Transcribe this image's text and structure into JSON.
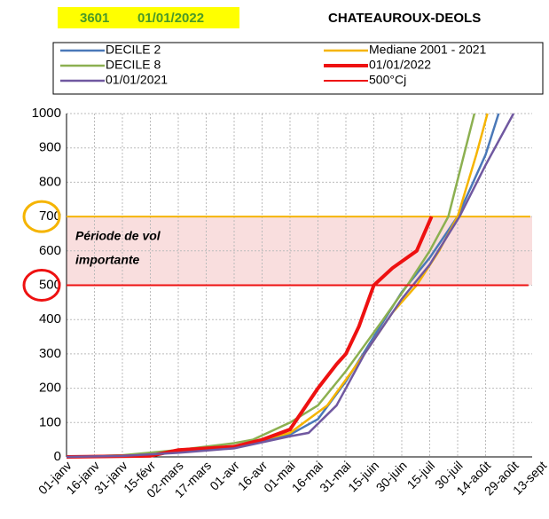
{
  "header": {
    "code": "3601",
    "date": "01/01/2022",
    "station": "CHATEAUROUX-DEOLS"
  },
  "chart_data": {
    "type": "line",
    "annotation": "Période de vol",
    "annotation2": "importante",
    "xlim": [
      0,
      250
    ],
    "xticks": [
      {
        "value": 0,
        "label": "01-janv"
      },
      {
        "value": 15,
        "label": "16-janv"
      },
      {
        "value": 30,
        "label": "31-janv"
      },
      {
        "value": 45,
        "label": "15-févr"
      },
      {
        "value": 60,
        "label": "02-mars"
      },
      {
        "value": 75,
        "label": "17-mars"
      },
      {
        "value": 90,
        "label": "01-avr"
      },
      {
        "value": 105,
        "label": "16-avr"
      },
      {
        "value": 120,
        "label": "01-mai"
      },
      {
        "value": 135,
        "label": "16-mai"
      },
      {
        "value": 150,
        "label": "31-mai"
      },
      {
        "value": 165,
        "label": "15-juin"
      },
      {
        "value": 180,
        "label": "30-juin"
      },
      {
        "value": 195,
        "label": "15-juil"
      },
      {
        "value": 210,
        "label": "30-juil"
      },
      {
        "value": 225,
        "label": "14-août"
      },
      {
        "value": 240,
        "label": "29-août"
      },
      {
        "value": 255,
        "label": "13-sept"
      }
    ],
    "ylim": [
      0,
      1000
    ],
    "yticks": [
      0,
      100,
      200,
      300,
      400,
      500,
      600,
      700,
      800,
      900,
      1000
    ],
    "grid": true,
    "band": {
      "from": 500,
      "to": 700,
      "color": "#f9dede"
    },
    "hline": {
      "value": 700,
      "color": "#f5b400"
    },
    "series": [
      {
        "name": "DECILE 2",
        "color": "#4a78b8",
        "width": 2.5,
        "x": [
          0,
          30,
          60,
          90,
          120,
          135,
          150,
          165,
          180,
          195,
          210,
          225,
          232
        ],
        "values": [
          0,
          3,
          15,
          30,
          65,
          110,
          220,
          350,
          480,
          580,
          700,
          880,
          1000
        ]
      },
      {
        "name": "Mediane 2001 - 2021",
        "color": "#f5b400",
        "width": 2.5,
        "x": [
          0,
          30,
          60,
          90,
          120,
          140,
          160,
          175,
          188,
          200,
          210,
          220,
          226
        ],
        "values": [
          0,
          4,
          18,
          30,
          70,
          150,
          300,
          420,
          500,
          600,
          700,
          880,
          1000
        ]
      },
      {
        "name": "DECILE 8",
        "color": "#8cb050",
        "width": 2.5,
        "x": [
          0,
          30,
          60,
          90,
          100,
          120,
          135,
          150,
          170,
          183,
          195,
          205,
          212,
          219
        ],
        "values": [
          0,
          5,
          20,
          40,
          50,
          100,
          150,
          250,
          400,
          500,
          600,
          700,
          850,
          1000
        ]
      },
      {
        "name": "01/01/2022",
        "color": "#ee1111",
        "width": 4,
        "x": [
          0,
          45,
          60,
          90,
          105,
          120,
          135,
          145,
          150,
          157,
          165,
          175,
          188,
          196
        ],
        "values": [
          0,
          3,
          20,
          30,
          50,
          80,
          200,
          270,
          300,
          380,
          500,
          550,
          600,
          700
        ]
      },
      {
        "name": "01/01/2021",
        "color": "#7058a0",
        "width": 2.5,
        "x": [
          0,
          30,
          60,
          90,
          120,
          130,
          145,
          160,
          180,
          195,
          211,
          225,
          240
        ],
        "values": [
          0,
          3,
          12,
          25,
          60,
          70,
          150,
          300,
          460,
          560,
          700,
          850,
          1000
        ]
      },
      {
        "name": "500°Cj",
        "color": "#ee1111",
        "width": 2,
        "x": [
          0,
          248
        ],
        "values": [
          500,
          500
        ]
      }
    ]
  }
}
